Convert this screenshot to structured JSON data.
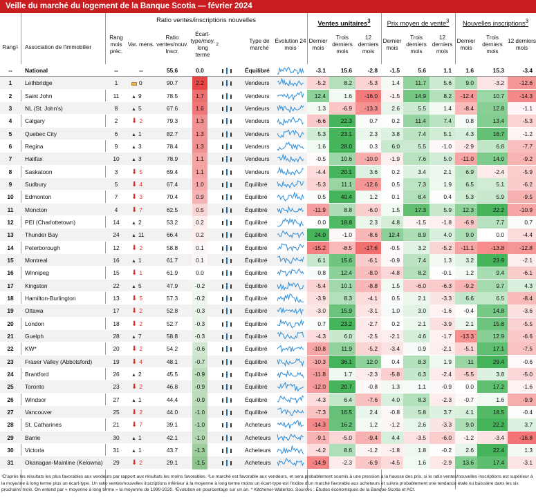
{
  "title": "Veille du marché du logement de la Banque Scotia — février 2024",
  "header": {
    "rang": "Rang",
    "rang_sup": "1",
    "association": "Association de l'immobilier",
    "group_ratio": "Ratio ventes/inscriptions nouvelles",
    "rang_prec": "Rang mois préc.",
    "var_mens": "Var. mens.",
    "ratio": "Ratio ventes/nouv. Inscr.",
    "ecart": "Écart-type/moy. long terme",
    "ecart_sup": "2",
    "type": "Type de marché",
    "evolution": "Évolution 24 mois",
    "group_ventes": "Ventes unitaires",
    "ventes_sup": "3",
    "group_prix": "Prix moyen de vente",
    "prix_sup": "3",
    "group_nouv": "Nouvelles inscriptions",
    "nouv_sup": "3",
    "dernier": "Dernier mois",
    "trois": "Trois derniers mois",
    "douze": "12 derniers mois"
  },
  "national": {
    "rank": "--",
    "name": "National",
    "prev": "--",
    "chg": "--",
    "ratio": "55.6",
    "sd": "0.0",
    "type": "Équilibré",
    "v": [
      "-3.1",
      "15.6",
      "-2.8"
    ],
    "p": [
      "-1.5",
      "5.6",
      "1.1"
    ],
    "n": [
      "1.6",
      "15.3",
      "-3.4"
    ]
  },
  "rows": [
    {
      "rank": "1",
      "name": "Lethbridge",
      "prev": "1",
      "dir": "=",
      "chg": "0",
      "ratio": "90.7",
      "sd": "2.2",
      "type": "Vendeurs",
      "v": [
        "-5.2",
        "8.2",
        "-5.3"
      ],
      "p": [
        "1.4",
        "11.7",
        "5.6"
      ],
      "n": [
        "9.0",
        "-3.2",
        "-12.6"
      ]
    },
    {
      "rank": "2",
      "name": "Saint John",
      "prev": "11",
      "dir": "up",
      "chg": "9",
      "ratio": "78.5",
      "sd": "1.7",
      "type": "Vendeurs",
      "v": [
        "12.4",
        "1.6",
        "-16.0"
      ],
      "p": [
        "-1.5",
        "14.9",
        "8.2"
      ],
      "n": [
        "-12.4",
        "10.7",
        "-14.3"
      ]
    },
    {
      "rank": "3",
      "name": "NL (St. John's)",
      "prev": "8",
      "dir": "up",
      "chg": "5",
      "ratio": "67.6",
      "sd": "1.6",
      "type": "Vendeurs",
      "v": [
        "1.3",
        "-6.9",
        "-13.3"
      ],
      "p": [
        "2.6",
        "5.5",
        "1.4"
      ],
      "n": [
        "-8.4",
        "12.8",
        "-1.1"
      ]
    },
    {
      "rank": "4",
      "name": "Calgary",
      "prev": "2",
      "dir": "down",
      "chg": "2",
      "ratio": "79.3",
      "sd": "1.3",
      "type": "Vendeurs",
      "v": [
        "-6.6",
        "22.3",
        "0.7"
      ],
      "p": [
        "0.2",
        "11.4",
        "7.4"
      ],
      "n": [
        "0.8",
        "13.4",
        "-5.3"
      ]
    },
    {
      "rank": "5",
      "name": "Quebec City",
      "prev": "6",
      "dir": "up",
      "chg": "1",
      "ratio": "82.7",
      "sd": "1.3",
      "type": "Vendeurs",
      "v": [
        "5.3",
        "23.1",
        "2.3"
      ],
      "p": [
        "3.8",
        "7.4",
        "5.1"
      ],
      "n": [
        "4.3",
        "16.7",
        "-1.2"
      ]
    },
    {
      "rank": "6",
      "name": "Regina",
      "prev": "9",
      "dir": "up",
      "chg": "3",
      "ratio": "78.4",
      "sd": "1.3",
      "type": "Vendeurs",
      "v": [
        "1.6",
        "28.0",
        "0.3"
      ],
      "p": [
        "6.0",
        "5.5",
        "-1.0"
      ],
      "n": [
        "-2.9",
        "6.8",
        "-7.7"
      ]
    },
    {
      "rank": "7",
      "name": "Halifax",
      "prev": "10",
      "dir": "up",
      "chg": "3",
      "ratio": "78.9",
      "sd": "1.1",
      "type": "Vendeurs",
      "v": [
        "-0.5",
        "10.6",
        "-10.0"
      ],
      "p": [
        "-1.9",
        "7.6",
        "5.0"
      ],
      "n": [
        "-11.0",
        "14.0",
        "-9.2"
      ]
    },
    {
      "rank": "8",
      "name": "Saskatoon",
      "prev": "3",
      "dir": "down",
      "chg": "5",
      "ratio": "69.4",
      "sd": "1.1",
      "type": "Vendeurs",
      "v": [
        "-4.4",
        "20.1",
        "3.6"
      ],
      "p": [
        "0.2",
        "3.4",
        "2.1"
      ],
      "n": [
        "6.9",
        "-2.4",
        "-5.9"
      ]
    },
    {
      "rank": "9",
      "name": "Sudbury",
      "prev": "5",
      "dir": "down",
      "chg": "4",
      "ratio": "67.4",
      "sd": "1.0",
      "type": "Équilibré",
      "v": [
        "-5.3",
        "11.1",
        "-12.6"
      ],
      "p": [
        "0.5",
        "7.3",
        "1.9"
      ],
      "n": [
        "6.5",
        "5.1",
        "-6.2"
      ]
    },
    {
      "rank": "10",
      "name": "Edmonton",
      "prev": "7",
      "dir": "down",
      "chg": "3",
      "ratio": "70.4",
      "sd": "0.9",
      "type": "Équilibré",
      "v": [
        "0.5",
        "40.4",
        "1.2"
      ],
      "p": [
        "0.1",
        "8.4",
        "0.4"
      ],
      "n": [
        "5.3",
        "5.9",
        "-9.5"
      ]
    },
    {
      "rank": "11",
      "name": "Moncton",
      "prev": "4",
      "dir": "down",
      "chg": "7",
      "ratio": "62.5",
      "sd": "0.5",
      "type": "Équilibré",
      "v": [
        "-11.9",
        "8.8",
        "-6.0"
      ],
      "p": [
        "1.5",
        "17.3",
        "5.9"
      ],
      "n": [
        "12.3",
        "22.2",
        "-10.9"
      ]
    },
    {
      "rank": "12",
      "name": "PEI (Charlottetown)",
      "prev": "14",
      "dir": "up",
      "chg": "2",
      "ratio": "53.2",
      "sd": "0.2",
      "type": "Équilibré",
      "v": [
        "0.0",
        "18.8",
        "2.3"
      ],
      "p": [
        "4.8",
        "-1.5",
        "-1.8"
      ],
      "n": [
        "-6.9",
        "7.7",
        "0.7"
      ]
    },
    {
      "rank": "13",
      "name": "Thunder Bay",
      "prev": "24",
      "dir": "up",
      "chg": "11",
      "ratio": "66.4",
      "sd": "0.2",
      "type": "Équilibré",
      "v": [
        "24.0",
        "-1.0",
        "-8.6"
      ],
      "p": [
        "12.4",
        "8.9",
        "4.0"
      ],
      "n": [
        "9.0",
        "0.0",
        "-4.4"
      ]
    },
    {
      "rank": "14",
      "name": "Peterborough",
      "prev": "12",
      "dir": "down",
      "chg": "2",
      "ratio": "58.8",
      "sd": "0.1",
      "type": "Équilibré",
      "v": [
        "-15.2",
        "-8.5",
        "-17.6"
      ],
      "p": [
        "-0.5",
        "3.2",
        "-5.2"
      ],
      "n": [
        "-11.1",
        "-13.8",
        "-12.8"
      ]
    },
    {
      "rank": "15",
      "name": "Montreal",
      "prev": "16",
      "dir": "up",
      "chg": "1",
      "ratio": "61.7",
      "sd": "0.1",
      "type": "Équilibré",
      "v": [
        "6.1",
        "15.6",
        "-6.1"
      ],
      "p": [
        "-0.9",
        "7.4",
        "1.3"
      ],
      "n": [
        "3.2",
        "23.9",
        "-2.1"
      ]
    },
    {
      "rank": "16",
      "name": "Winnipeg",
      "prev": "15",
      "dir": "down",
      "chg": "1",
      "ratio": "61.9",
      "sd": "0.0",
      "type": "Équilibré",
      "v": [
        "0.8",
        "12.4",
        "-8.0"
      ],
      "p": [
        "-4.8",
        "8.2",
        "-0.1"
      ],
      "n": [
        "1.2",
        "9.4",
        "-6.1"
      ]
    },
    {
      "rank": "17",
      "name": "Kingston",
      "prev": "22",
      "dir": "up",
      "chg": "5",
      "ratio": "47.9",
      "sd": "-0.2",
      "type": "Équilibré",
      "v": [
        "-5.4",
        "10.1",
        "-8.8"
      ],
      "p": [
        "1.5",
        "-6.0",
        "-6.3"
      ],
      "n": [
        "-9.2",
        "9.7",
        "4.3"
      ]
    },
    {
      "rank": "18",
      "name": "Hamilton-Burlington",
      "prev": "13",
      "dir": "down",
      "chg": "5",
      "ratio": "57.3",
      "sd": "-0.2",
      "type": "Équilibré",
      "v": [
        "-3.9",
        "8.3",
        "-4.1"
      ],
      "p": [
        "0.5",
        "2.1",
        "-3.3"
      ],
      "n": [
        "6.6",
        "6.5",
        "-8.4"
      ]
    },
    {
      "rank": "19",
      "name": "Ottawa",
      "prev": "17",
      "dir": "down",
      "chg": "2",
      "ratio": "52.8",
      "sd": "-0.3",
      "type": "Équilibré",
      "v": [
        "-3.0",
        "15.9",
        "-3.1"
      ],
      "p": [
        "1.0",
        "3.0",
        "-1.6"
      ],
      "n": [
        "-0.4",
        "14.8",
        "-3.6"
      ]
    },
    {
      "rank": "20",
      "name": "London",
      "prev": "18",
      "dir": "down",
      "chg": "2",
      "ratio": "52.7",
      "sd": "-0.3",
      "type": "Équilibré",
      "v": [
        "0.7",
        "23.2",
        "-2.7"
      ],
      "p": [
        "0.2",
        "2.1",
        "-3.9"
      ],
      "n": [
        "2.1",
        "15.8",
        "-5.5"
      ]
    },
    {
      "rank": "21",
      "name": "Guelph",
      "prev": "28",
      "dir": "up",
      "chg": "7",
      "ratio": "58.8",
      "sd": "-0.3",
      "type": "Équilibré",
      "v": [
        "-4.3",
        "6.0",
        "-2.5"
      ],
      "p": [
        "-2.1",
        "4.6",
        "-1.7"
      ],
      "n": [
        "-13.3",
        "12.9",
        "-6.6"
      ]
    },
    {
      "rank": "22",
      "name": "KW*",
      "prev": "20",
      "dir": "down",
      "chg": "2",
      "ratio": "54.2",
      "sd": "-0.6",
      "type": "Équilibré",
      "v": [
        "-10.8",
        "11.9",
        "-5.2"
      ],
      "p": [
        "-3.4",
        "0.9",
        "-2.1"
      ],
      "n": [
        "-5.1",
        "17.1",
        "-7.5"
      ]
    },
    {
      "rank": "23",
      "name": "Fraser Valley (Abbotsford)",
      "prev": "19",
      "dir": "down",
      "chg": "4",
      "ratio": "48.1",
      "sd": "-0.7",
      "type": "Équilibré",
      "v": [
        "-10.3",
        "36.1",
        "12.0"
      ],
      "p": [
        "0.4",
        "8.3",
        "1.9"
      ],
      "n": [
        "11",
        "29.4",
        "-0.6"
      ]
    },
    {
      "rank": "24",
      "name": "Brantford",
      "prev": "26",
      "dir": "up",
      "chg": "2",
      "ratio": "45.5",
      "sd": "-0.9",
      "type": "Équilibré",
      "v": [
        "-11.8",
        "1.7",
        "-2.3"
      ],
      "p": [
        "-5.8",
        "6.3",
        "-2.4"
      ],
      "n": [
        "-5.5",
        "3.8",
        "-5.0"
      ]
    },
    {
      "rank": "25",
      "name": "Toronto",
      "prev": "23",
      "dir": "down",
      "chg": "2",
      "ratio": "46.8",
      "sd": "-0.9",
      "type": "Équilibré",
      "v": [
        "-12.0",
        "20.7",
        "-0.8"
      ],
      "p": [
        "1.3",
        "1.1",
        "-0.9"
      ],
      "n": [
        "0.0",
        "17.2",
        "-1.6"
      ]
    },
    {
      "rank": "26",
      "name": "Windsor",
      "prev": "27",
      "dir": "up",
      "chg": "1",
      "ratio": "44.4",
      "sd": "-0.9",
      "type": "Équilibré",
      "v": [
        "-4.3",
        "6.4",
        "-7.6"
      ],
      "p": [
        "4.0",
        "8.3",
        "-2.3"
      ],
      "n": [
        "-0.7",
        "1.6",
        "-9.9"
      ]
    },
    {
      "rank": "27",
      "name": "Vancouver",
      "prev": "25",
      "dir": "down",
      "chg": "2",
      "ratio": "44.0",
      "sd": "-1.0",
      "type": "Équilibré",
      "v": [
        "-7.3",
        "16.5",
        "2.4"
      ],
      "p": [
        "-0.8",
        "5.8",
        "3.7"
      ],
      "n": [
        "4.1",
        "18.5",
        "-0.4"
      ]
    },
    {
      "rank": "28",
      "name": "St. Catharines",
      "prev": "21",
      "dir": "down",
      "chg": "7",
      "ratio": "39.1",
      "sd": "-1.0",
      "type": "Acheteurs",
      "v": [
        "-14.3",
        "16.2",
        "1.2"
      ],
      "p": [
        "-1.2",
        "2.6",
        "-3.3"
      ],
      "n": [
        "9.0",
        "22.2",
        "3.7"
      ]
    },
    {
      "rank": "29",
      "name": "Barrie",
      "prev": "30",
      "dir": "up",
      "chg": "1",
      "ratio": "42.1",
      "sd": "-1.0",
      "type": "Acheteurs",
      "v": [
        "-9.1",
        "-5.0",
        "-9.4"
      ],
      "p": [
        "4.4",
        "-3.5",
        "-6.0"
      ],
      "n": [
        "-1.2",
        "-3.4",
        "-16.8"
      ]
    },
    {
      "rank": "30",
      "name": "Victoria",
      "prev": "31",
      "dir": "up",
      "chg": "1",
      "ratio": "43.7",
      "sd": "-1.3",
      "type": "Acheteurs",
      "v": [
        "-4.2",
        "8.6",
        "-1.2"
      ],
      "p": [
        "-1.8",
        "1.8",
        "-0.2"
      ],
      "n": [
        "2.6",
        "22.4",
        "1.3"
      ]
    },
    {
      "rank": "31",
      "name": "Okanagan-Mainline (Kelowna)",
      "prev": "29",
      "dir": "down",
      "chg": "2",
      "ratio": "29.1",
      "sd": "-1.5",
      "type": "Acheteurs",
      "v": [
        "-14.9",
        "-2.3",
        "-6.9"
      ],
      "p": [
        "-4.5",
        "1.6",
        "-2.9"
      ],
      "n": [
        "13.6",
        "17.4",
        "-3.1"
      ]
    }
  ],
  "footer": "¹D'après les résultats les plus favorables aux vendeurs par rapport aux résultats les moins favorables. ²Le marché est favorable aux vendeurs, et sera probablement soumis à une pression à la hausse des prix, si le ratio ventes/nouvelles inscriptions est supérieur à la moyenne à long terme plus un écart-type. Un ratio ventes/nouvelles inscriptions inférieur à la moyenne à long terme moins un écart-type est l'indice d'un marché favorable aux acheteurs et suivra probablement une tendance étale ou baissière dans les six prochains mois. On entend par « moyenne à long terme » la moyenne de 1990-2020. ³Évolution en pourcentage sur un an. * Kitchener-Waterloo. Sources : Études économiques de la Banque Scotia et ACI."
}
